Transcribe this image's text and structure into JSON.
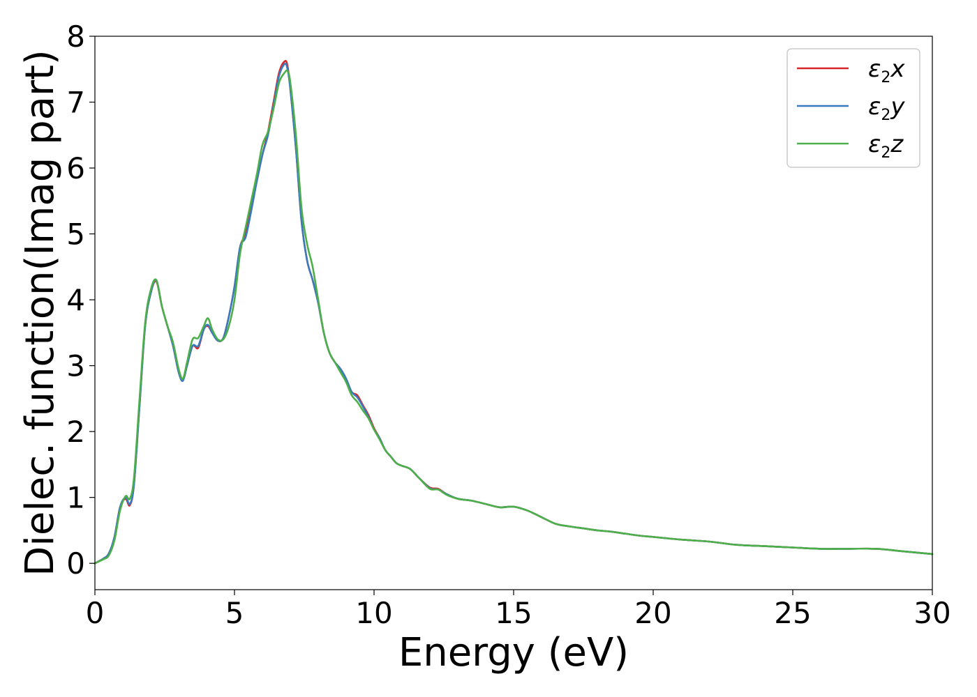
{
  "chart_data": {
    "type": "line",
    "title": "",
    "xlabel": "Energy (eV)",
    "ylabel": "Dielec. function(Imag part)",
    "xlim": [
      0,
      30
    ],
    "ylim": [
      -0.4,
      8
    ],
    "xticks": [
      0,
      5,
      10,
      15,
      20,
      25,
      30
    ],
    "yticks": [
      0,
      1,
      2,
      3,
      4,
      5,
      6,
      7,
      8
    ],
    "grid": false,
    "legend_position": "top-right",
    "series": [
      {
        "name": "ε2x",
        "legend_symbol": "ε",
        "legend_subscript": "2",
        "legend_var": "x",
        "color": "#d62728",
        "x": [
          0,
          0.3,
          0.5,
          0.7,
          0.9,
          1.1,
          1.25,
          1.4,
          1.6,
          1.8,
          2.0,
          2.2,
          2.4,
          2.6,
          2.8,
          3.0,
          3.15,
          3.3,
          3.5,
          3.7,
          3.9,
          4.05,
          4.2,
          4.4,
          4.6,
          4.8,
          5.0,
          5.2,
          5.4,
          5.6,
          5.8,
          6.0,
          6.2,
          6.4,
          6.6,
          6.8,
          6.9,
          7.0,
          7.2,
          7.4,
          7.6,
          7.8,
          8.0,
          8.2,
          8.4,
          8.6,
          8.8,
          9.0,
          9.2,
          9.4,
          9.6,
          9.8,
          10.0,
          10.2,
          10.4,
          10.6,
          10.8,
          11.0,
          11.3,
          11.6,
          12.0,
          12.3,
          12.6,
          13.0,
          13.5,
          14.0,
          14.5,
          15.0,
          15.5,
          16.0,
          16.5,
          17.0,
          17.5,
          18.0,
          18.5,
          19.0,
          19.5,
          20.0,
          21.0,
          22.0,
          23.0,
          24.0,
          25.0,
          26.0,
          27.0,
          28.0,
          29.0,
          30.0
        ],
        "values": [
          0.0,
          0.07,
          0.15,
          0.4,
          0.85,
          0.98,
          0.88,
          1.2,
          2.4,
          3.6,
          4.1,
          4.28,
          3.9,
          3.6,
          3.3,
          2.9,
          2.78,
          3.0,
          3.3,
          3.27,
          3.55,
          3.6,
          3.5,
          3.38,
          3.42,
          3.75,
          4.2,
          4.8,
          5.0,
          5.4,
          5.8,
          6.2,
          6.55,
          7.0,
          7.45,
          7.62,
          7.55,
          7.2,
          6.3,
          5.2,
          4.6,
          4.3,
          3.95,
          3.5,
          3.2,
          3.05,
          2.95,
          2.8,
          2.6,
          2.55,
          2.4,
          2.25,
          2.05,
          1.9,
          1.72,
          1.62,
          1.52,
          1.48,
          1.43,
          1.3,
          1.15,
          1.13,
          1.05,
          0.98,
          0.95,
          0.9,
          0.85,
          0.86,
          0.8,
          0.7,
          0.6,
          0.56,
          0.53,
          0.5,
          0.48,
          0.45,
          0.42,
          0.4,
          0.36,
          0.33,
          0.28,
          0.26,
          0.24,
          0.22,
          0.22,
          0.22,
          0.18,
          0.14
        ]
      },
      {
        "name": "ε2y",
        "legend_symbol": "ε",
        "legend_subscript": "2",
        "legend_var": "y",
        "color": "#3a7bbf",
        "x": [
          0,
          0.3,
          0.5,
          0.7,
          0.9,
          1.1,
          1.25,
          1.4,
          1.6,
          1.8,
          2.0,
          2.2,
          2.4,
          2.6,
          2.8,
          3.0,
          3.15,
          3.3,
          3.5,
          3.7,
          3.9,
          4.05,
          4.2,
          4.4,
          4.6,
          4.8,
          5.0,
          5.2,
          5.4,
          5.6,
          5.8,
          6.0,
          6.2,
          6.4,
          6.6,
          6.8,
          6.9,
          7.0,
          7.2,
          7.4,
          7.6,
          7.8,
          8.0,
          8.2,
          8.4,
          8.6,
          8.8,
          9.0,
          9.2,
          9.4,
          9.6,
          9.8,
          10.0,
          10.2,
          10.4,
          10.6,
          10.8,
          11.0,
          11.3,
          11.6,
          12.0,
          12.3,
          12.6,
          13.0,
          13.5,
          14.0,
          14.5,
          15.0,
          15.5,
          16.0,
          16.5,
          17.0,
          17.5,
          18.0,
          18.5,
          19.0,
          19.5,
          20.0,
          21.0,
          22.0,
          23.0,
          24.0,
          25.0,
          26.0,
          27.0,
          28.0,
          29.0,
          30.0
        ],
        "values": [
          0.0,
          0.07,
          0.15,
          0.4,
          0.85,
          1.0,
          0.9,
          1.2,
          2.4,
          3.6,
          4.1,
          4.3,
          3.9,
          3.6,
          3.3,
          2.9,
          2.77,
          3.0,
          3.3,
          3.3,
          3.55,
          3.62,
          3.5,
          3.38,
          3.42,
          3.75,
          4.2,
          4.8,
          4.95,
          5.35,
          5.8,
          6.2,
          6.5,
          6.95,
          7.4,
          7.58,
          7.5,
          7.2,
          6.3,
          5.2,
          4.6,
          4.3,
          3.95,
          3.5,
          3.2,
          3.05,
          2.95,
          2.8,
          2.6,
          2.52,
          2.38,
          2.22,
          2.03,
          1.9,
          1.72,
          1.62,
          1.52,
          1.48,
          1.43,
          1.3,
          1.14,
          1.12,
          1.05,
          0.98,
          0.95,
          0.9,
          0.85,
          0.86,
          0.8,
          0.7,
          0.6,
          0.56,
          0.53,
          0.5,
          0.48,
          0.45,
          0.42,
          0.4,
          0.36,
          0.33,
          0.28,
          0.26,
          0.24,
          0.22,
          0.22,
          0.22,
          0.18,
          0.14
        ]
      },
      {
        "name": "ε2z",
        "legend_symbol": "ε",
        "legend_subscript": "2",
        "legend_var": "z",
        "color": "#4daf4a",
        "x": [
          0,
          0.3,
          0.5,
          0.7,
          0.9,
          1.1,
          1.25,
          1.4,
          1.6,
          1.8,
          2.0,
          2.2,
          2.4,
          2.6,
          2.8,
          3.0,
          3.15,
          3.3,
          3.5,
          3.7,
          3.9,
          4.05,
          4.2,
          4.4,
          4.6,
          4.8,
          5.0,
          5.2,
          5.4,
          5.6,
          5.8,
          6.0,
          6.2,
          6.4,
          6.6,
          6.8,
          6.9,
          7.0,
          7.2,
          7.4,
          7.6,
          7.8,
          8.0,
          8.2,
          8.4,
          8.6,
          8.8,
          9.0,
          9.2,
          9.4,
          9.6,
          9.8,
          10.0,
          10.2,
          10.4,
          10.6,
          10.8,
          11.0,
          11.3,
          11.6,
          12.0,
          12.3,
          12.6,
          13.0,
          13.5,
          14.0,
          14.5,
          15.0,
          15.5,
          16.0,
          16.5,
          17.0,
          17.5,
          18.0,
          18.5,
          19.0,
          19.5,
          20.0,
          21.0,
          22.0,
          23.0,
          24.0,
          25.0,
          26.0,
          27.0,
          28.0,
          29.0,
          30.0
        ],
        "values": [
          0.0,
          0.06,
          0.12,
          0.35,
          0.8,
          1.02,
          0.98,
          1.3,
          2.5,
          3.65,
          4.15,
          4.3,
          3.9,
          3.6,
          3.35,
          2.95,
          2.8,
          3.05,
          3.4,
          3.42,
          3.6,
          3.72,
          3.55,
          3.4,
          3.4,
          3.6,
          4.0,
          4.7,
          5.1,
          5.5,
          5.9,
          6.35,
          6.55,
          6.9,
          7.3,
          7.45,
          7.47,
          7.3,
          6.5,
          5.4,
          4.85,
          4.5,
          4.0,
          3.5,
          3.2,
          3.05,
          2.9,
          2.75,
          2.55,
          2.45,
          2.32,
          2.2,
          2.03,
          1.88,
          1.72,
          1.62,
          1.52,
          1.48,
          1.43,
          1.3,
          1.13,
          1.12,
          1.04,
          0.98,
          0.95,
          0.9,
          0.85,
          0.86,
          0.8,
          0.7,
          0.6,
          0.56,
          0.53,
          0.5,
          0.48,
          0.45,
          0.42,
          0.4,
          0.36,
          0.33,
          0.28,
          0.26,
          0.24,
          0.22,
          0.22,
          0.22,
          0.18,
          0.14
        ]
      }
    ]
  }
}
